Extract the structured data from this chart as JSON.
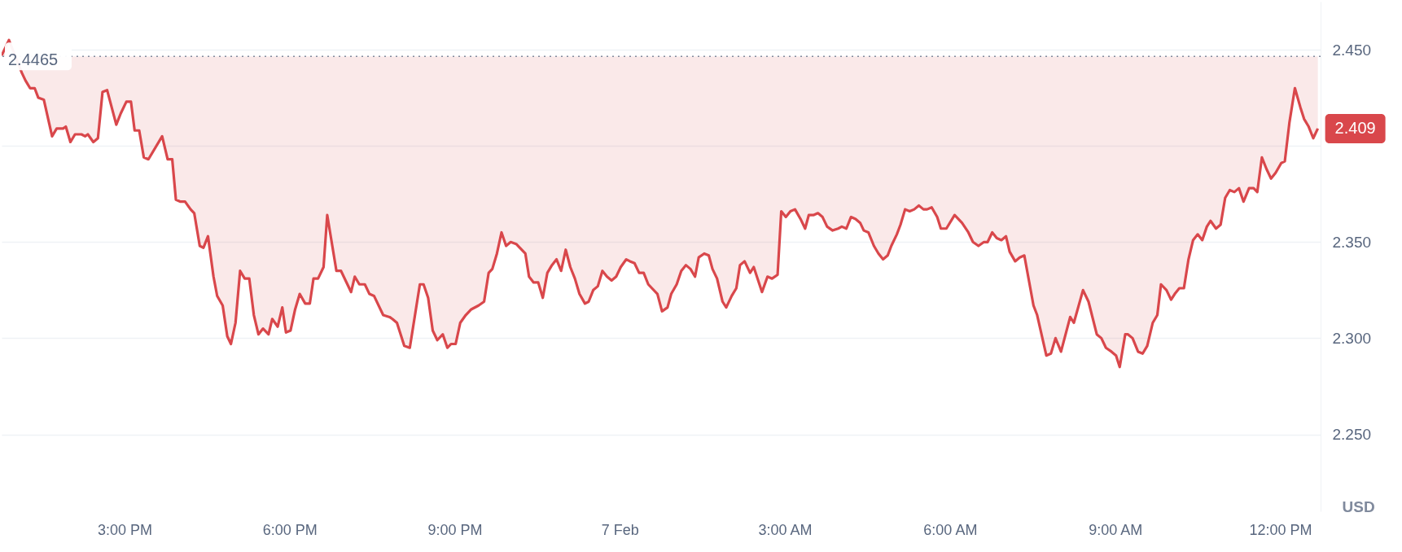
{
  "chart_data": {
    "type": "line",
    "ylabel": "USD",
    "grid": "y",
    "x": [
      "--02-06T12:46",
      "--02-06T12:54",
      "--02-06T13:08",
      "--02-06T13:12",
      "--02-06T13:17",
      "--02-06T13:22",
      "--02-06T13:26",
      "--02-06T13:32",
      "--02-06T13:41",
      "--02-06T13:46",
      "--02-06T13:53",
      "--02-06T13:56",
      "--02-06T14:01",
      "--02-06T14:06",
      "--02-06T14:13",
      "--02-06T14:17",
      "--02-06T14:20",
      "--02-06T14:26",
      "--02-06T14:31",
      "--02-06T14:36",
      "--02-06T14:41",
      "--02-06T14:51",
      "--02-06T14:56",
      "--02-06T15:02",
      "--02-06T15:07",
      "--02-06T15:11",
      "--02-06T15:16",
      "--02-06T15:21",
      "--02-06T15:26",
      "--02-06T15:41",
      "--02-06T15:47",
      "--02-06T15:52",
      "--02-06T15:56",
      "--02-06T16:01",
      "--02-06T16:06",
      "--02-06T16:12",
      "--02-06T16:16",
      "--02-06T16:22",
      "--02-06T16:26",
      "--02-06T16:31",
      "--02-06T16:37",
      "--02-06T16:41",
      "--02-06T16:47",
      "--02-06T16:52",
      "--02-06T16:56",
      "--02-06T17:01",
      "--02-06T17:06",
      "--02-06T17:11",
      "--02-06T17:16",
      "--02-06T17:21",
      "--02-06T17:26",
      "--02-06T17:31",
      "--02-06T17:37",
      "--02-06T17:41",
      "--02-06T17:47",
      "--02-06T17:52",
      "--02-06T17:56",
      "--02-06T18:01",
      "--02-06T18:06",
      "--02-06T18:11",
      "--02-06T18:17",
      "--02-06T18:22",
      "--02-06T18:26",
      "--02-06T18:31",
      "--02-06T18:37",
      "--02-06T18:41",
      "--02-06T18:51",
      "--02-06T18:56",
      "--02-06T19:07",
      "--02-06T19:11",
      "--02-06T19:16",
      "--02-06T19:22",
      "--02-06T19:27",
      "--02-06T19:32",
      "--02-06T19:42",
      "--02-06T19:49",
      "--02-06T19:52",
      "--02-06T19:57",
      "--02-06T20:05",
      "--02-06T20:11",
      "--02-06T20:22",
      "--02-06T20:26",
      "--02-06T20:31",
      "--02-06T20:36",
      "--02-06T20:41",
      "--02-06T20:47",
      "--02-06T20:52",
      "--02-06T20:56",
      "--02-06T21:01",
      "--02-06T21:06",
      "--02-06T21:12",
      "--02-06T21:18",
      "--02-06T21:26",
      "--02-06T21:32",
      "--02-06T21:37",
      "--02-06T21:41",
      "--02-06T21:46",
      "--02-06T21:51",
      "--02-06T21:56",
      "--02-06T22:01",
      "--02-06T22:07",
      "--02-06T22:11",
      "--02-06T22:17",
      "--02-06T22:21",
      "--02-06T22:26",
      "--02-06T22:31",
      "--02-06T22:36",
      "--02-06T22:41",
      "--02-06T22:46",
      "--02-06T22:51",
      "--02-06T22:56",
      "--02-06T23:01",
      "--02-06T23:06",
      "--02-06T23:11",
      "--02-06T23:16",
      "--02-06T23:22",
      "--02-06T23:26",
      "--02-06T23:31",
      "--02-06T23:36",
      "--02-06T23:41",
      "--02-06T23:46",
      "--02-06T23:51",
      "--02-06T23:56",
      "--02-07T00:01",
      "--02-07T00:07",
      "--02-07T00:11",
      "--02-07T00:16",
      "--02-07T00:21",
      "--02-07T00:26",
      "--02-07T00:31",
      "--02-07T00:41",
      "--02-07T00:46",
      "--02-07T00:52",
      "--02-07T00:56",
      "--02-07T01:02",
      "--02-07T01:07",
      "--02-07T01:12",
      "--02-07T01:17",
      "--02-07T01:22",
      "--02-07T01:26",
      "--02-07T01:32",
      "--02-07T01:37",
      "--02-07T01:41",
      "--02-07T01:46",
      "--02-07T01:52",
      "--02-07T01:56",
      "--02-07T02:02",
      "--02-07T02:07",
      "--02-07T02:11",
      "--02-07T02:16",
      "--02-07T02:22",
      "--02-07T02:26",
      "--02-07T02:35",
      "--02-07T02:41",
      "--02-07T02:46",
      "--02-07T02:52",
      "--02-07T02:56",
      "--02-07T03:01",
      "--02-07T03:06",
      "--02-07T03:11",
      "--02-07T03:17",
      "--02-07T03:22",
      "--02-07T03:26",
      "--02-07T03:31",
      "--02-07T03:36",
      "--02-07T03:41",
      "--02-07T03:46",
      "--02-07T03:52",
      "--02-07T03:58",
      "--02-07T04:02",
      "--02-07T04:07",
      "--02-07T04:12",
      "--02-07T04:17",
      "--02-07T04:22",
      "--02-07T04:26",
      "--02-07T04:31",
      "--02-07T04:37",
      "--02-07T04:42",
      "--02-07T04:47",
      "--02-07T04:52",
      "--02-07T04:56",
      "--02-07T05:02",
      "--02-07T05:06",
      "--02-07T05:11",
      "--02-07T05:16",
      "--02-07T05:21",
      "--02-07T05:26",
      "--02-07T05:31",
      "--02-07T05:35",
      "--02-07T05:40",
      "--02-07T05:46",
      "--02-07T05:50",
      "--02-07T05:56",
      "--02-07T06:05",
      "--02-07T06:13",
      "--02-07T06:20",
      "--02-07T06:25",
      "--02-07T06:31",
      "--02-07T06:37",
      "--02-07T06:41",
      "--02-07T06:46",
      "--02-07T06:51",
      "--02-07T06:56",
      "--02-07T07:01",
      "--02-07T07:05",
      "--02-07T07:11",
      "--02-07T07:16",
      "--02-07T07:21",
      "--02-07T07:26",
      "--02-07T07:31",
      "--02-07T07:35",
      "--02-07T07:45",
      "--02-07T07:50",
      "--02-07T07:55",
      "--02-07T08:01",
      "--02-07T08:11",
      "--02-07T08:15",
      "--02-07T08:25",
      "--02-07T08:31",
      "--02-07T08:40",
      "--02-07T08:45",
      "--02-07T08:50",
      "--02-07T08:56",
      "--02-07T09:01",
      "--02-07T09:05",
      "--02-07T09:11",
      "--02-07T09:14",
      "--02-07T09:19",
      "--02-07T09:25",
      "--02-07T09:30",
      "--02-07T09:35",
      "--02-07T09:41",
      "--02-07T09:46",
      "--02-07T09:50",
      "--02-07T09:56",
      "--02-07T10:01",
      "--02-07T10:05",
      "--02-07T10:10",
      "--02-07T10:15",
      "--02-07T10:20",
      "--02-07T10:25",
      "--02-07T10:30",
      "--02-07T10:35",
      "--02-07T10:40",
      "--02-07T10:44",
      "--02-07T10:50",
      "--02-07T10:55",
      "--02-07T11:00",
      "--02-07T11:05",
      "--02-07T11:10",
      "--02-07T11:15",
      "--02-07T11:20",
      "--02-07T11:26",
      "--02-07T11:31",
      "--02-07T11:35",
      "--02-07T11:40",
      "--02-07T11:45",
      "--02-07T11:50",
      "--02-07T11:55",
      "--02-07T12:01",
      "--02-07T12:05",
      "--02-07T12:10",
      "--02-07T12:16",
      "--02-07T12:22",
      "--02-07T12:26",
      "--02-07T12:31",
      "--02-07T12:36",
      "--02-07T12:41"
    ],
    "series": [
      {
        "color": "#d9474b",
        "values": [
          2.447,
          2.455,
          2.438,
          2.434,
          2.43,
          2.43,
          2.425,
          2.424,
          2.405,
          2.409,
          2.409,
          2.41,
          2.402,
          2.406,
          2.406,
          2.405,
          2.406,
          2.402,
          2.404,
          2.428,
          2.429,
          2.411,
          2.417,
          2.423,
          2.423,
          2.408,
          2.408,
          2.394,
          2.393,
          2.405,
          2.393,
          2.393,
          2.372,
          2.371,
          2.371,
          2.367,
          2.365,
          2.348,
          2.347,
          2.353,
          2.332,
          2.322,
          2.317,
          2.301,
          2.297,
          2.308,
          2.335,
          2.331,
          2.331,
          2.312,
          2.302,
          2.305,
          2.302,
          2.31,
          2.306,
          2.316,
          2.303,
          2.304,
          2.315,
          2.323,
          2.318,
          2.318,
          2.331,
          2.331,
          2.337,
          2.364,
          2.335,
          2.335,
          2.324,
          2.332,
          2.328,
          2.328,
          2.323,
          2.322,
          2.312,
          2.311,
          2.31,
          2.308,
          2.296,
          2.295,
          2.328,
          2.328,
          2.321,
          2.304,
          2.299,
          2.302,
          2.295,
          2.297,
          2.297,
          2.308,
          2.312,
          2.315,
          2.317,
          2.319,
          2.334,
          2.336,
          2.344,
          2.355,
          2.348,
          2.35,
          2.349,
          2.347,
          2.344,
          2.332,
          2.329,
          2.329,
          2.321,
          2.334,
          2.338,
          2.341,
          2.335,
          2.346,
          2.337,
          2.331,
          2.323,
          2.318,
          2.319,
          2.325,
          2.327,
          2.335,
          2.332,
          2.33,
          2.332,
          2.337,
          2.341,
          2.34,
          2.339,
          2.334,
          2.334,
          2.328,
          2.323,
          2.314,
          2.316,
          2.323,
          2.328,
          2.335,
          2.338,
          2.336,
          2.332,
          2.342,
          2.344,
          2.343,
          2.336,
          2.331,
          2.319,
          2.316,
          2.322,
          2.326,
          2.338,
          2.34,
          2.334,
          2.337,
          2.324,
          2.332,
          2.331,
          2.333,
          2.366,
          2.363,
          2.366,
          2.367,
          2.362,
          2.357,
          2.364,
          2.364,
          2.365,
          2.363,
          2.358,
          2.356,
          2.357,
          2.358,
          2.357,
          2.363,
          2.362,
          2.36,
          2.356,
          2.355,
          2.348,
          2.344,
          2.341,
          2.343,
          2.348,
          2.354,
          2.359,
          2.367,
          2.366,
          2.367,
          2.369,
          2.367,
          2.367,
          2.368,
          2.363,
          2.357,
          2.357,
          2.364,
          2.36,
          2.355,
          2.35,
          2.348,
          2.35,
          2.35,
          2.355,
          2.352,
          2.351,
          2.353,
          2.345,
          2.34,
          2.342,
          2.343,
          2.33,
          2.317,
          2.312,
          2.291,
          2.292,
          2.3,
          2.293,
          2.311,
          2.308,
          2.325,
          2.319,
          2.302,
          2.3,
          2.295,
          2.293,
          2.291,
          2.285,
          2.302,
          2.302,
          2.3,
          2.293,
          2.292,
          2.296,
          2.308,
          2.312,
          2.328,
          2.325,
          2.32,
          2.323,
          2.326,
          2.326,
          2.341,
          2.351,
          2.354,
          2.351,
          2.358,
          2.361,
          2.357,
          2.359,
          2.373,
          2.377,
          2.376,
          2.378,
          2.371,
          2.378,
          2.378,
          2.376,
          2.394,
          2.388,
          2.383,
          2.386,
          2.391,
          2.392,
          2.412,
          2.43,
          2.42,
          2.414,
          2.41,
          2.404,
          2.409
        ]
      }
    ],
    "xlim": [
      "--02-06T12:46",
      "--02-07T12:44"
    ],
    "ylim": [
      2.21,
      2.475
    ],
    "xticks": [
      {
        "value": "--02-06T15:00",
        "label": "3:00 PM"
      },
      {
        "value": "--02-06T18:00",
        "label": "6:00 PM"
      },
      {
        "value": "--02-06T21:00",
        "label": "9:00 PM"
      },
      {
        "value": "--02-07T00:00",
        "label": "7 Feb"
      },
      {
        "value": "--02-07T03:00",
        "label": "3:00 AM"
      },
      {
        "value": "--02-07T06:00",
        "label": "6:00 AM"
      },
      {
        "value": "--02-07T09:00",
        "label": "9:00 AM"
      },
      {
        "value": "--02-07T12:00",
        "label": "12:00 PM"
      }
    ],
    "yticks": [
      {
        "value": 2.25,
        "label": "2.250"
      },
      {
        "value": 2.3,
        "label": "2.300"
      },
      {
        "value": 2.35,
        "label": "2.350"
      },
      {
        "value": 2.4,
        "label": null
      },
      {
        "value": 2.45,
        "label": "2.450"
      }
    ],
    "ref_lines": [
      {
        "axis": "y",
        "value": 2.4465,
        "label": "2.4465",
        "color": "#808a9d",
        "line_style": "dotted"
      }
    ],
    "annotations": [
      {
        "text": "2.409",
        "x": "--02-07T12:41",
        "y": 2.409
      }
    ]
  }
}
